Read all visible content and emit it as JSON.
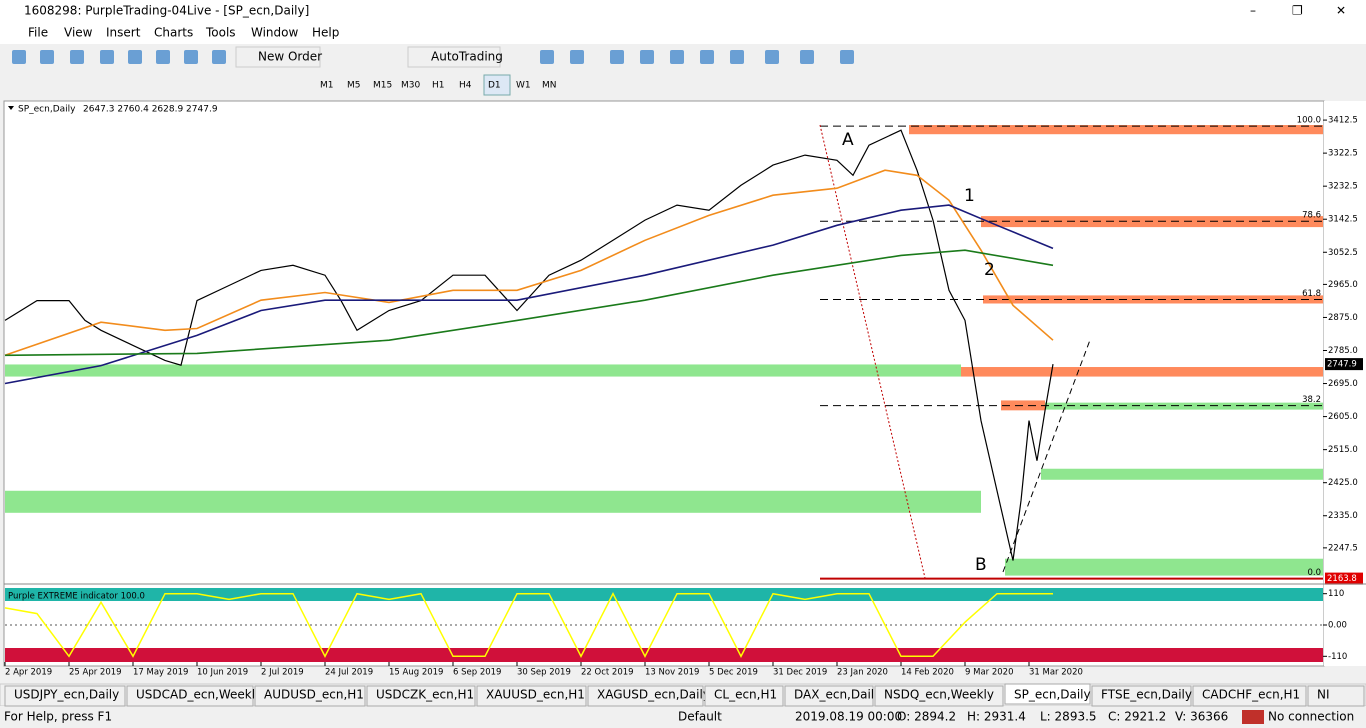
{
  "window": {
    "title": "1608298: PurpleTrading-04Live - [SP_ecn,Daily]"
  },
  "menu": [
    "File",
    "View",
    "Insert",
    "Charts",
    "Tools",
    "Window",
    "Help"
  ],
  "toolbar": {
    "new_order": "New Order",
    "auto_trading": "AutoTrading",
    "periods": [
      "M1",
      "M5",
      "M15",
      "M30",
      "H1",
      "H4",
      "D1",
      "W1",
      "MN"
    ]
  },
  "chart_data": [
    {
      "type": "line",
      "title": "SP_ecn,Daily",
      "subtitle": "2647.3 2760.4 2628.9 2747.9",
      "xlim": [
        0,
        329.5
      ],
      "ylim": [
        2160,
        3459
      ],
      "xticks": [
        {
          "value": 0,
          "label": "2 Apr 2019"
        },
        {
          "value": 16,
          "label": "25 Apr 2019"
        },
        {
          "value": 32,
          "label": "17 May 2019"
        },
        {
          "value": 48,
          "label": "10 Jun 2019"
        },
        {
          "value": 64,
          "label": "2 Jul 2019"
        },
        {
          "value": 80,
          "label": "24 Jul 2019"
        },
        {
          "value": 96,
          "label": "15 Aug 2019"
        },
        {
          "value": 112,
          "label": "6 Sep 2019"
        },
        {
          "value": 128,
          "label": "30 Sep 2019"
        },
        {
          "value": 144,
          "label": "22 Oct 2019"
        },
        {
          "value": 160,
          "label": "13 Nov 2019"
        },
        {
          "value": 176,
          "label": "5 Dec 2019"
        },
        {
          "value": 192,
          "label": "31 Dec 2019"
        },
        {
          "value": 208,
          "label": "23 Jan 2020"
        },
        {
          "value": 224,
          "label": "14 Feb 2020"
        },
        {
          "value": 240,
          "label": "9 Mar 2020"
        },
        {
          "value": 256,
          "label": "31 Mar 2020"
        }
      ],
      "yticks": [
        3412.5,
        3322.5,
        3232.5,
        3142.5,
        3052.5,
        {
          "value": 2965,
          "label": "2965.0"
        },
        {
          "value": 2875,
          "label": "2875.0"
        },
        {
          "value": 2785,
          "label": "2785.0"
        },
        {
          "value": 2695,
          "label": "2695.0"
        },
        {
          "value": 2605,
          "label": "2605.0"
        },
        {
          "value": 2515,
          "label": "2515.0"
        },
        {
          "value": 2425,
          "label": "2425.0"
        },
        {
          "value": 2335,
          "label": "2335.0"
        },
        2247.5
      ],
      "series": [
        {
          "color": "#000000",
          "x": [
            0,
            8,
            16,
            20,
            24,
            32,
            40,
            44,
            48,
            56,
            64,
            72,
            80,
            84,
            88,
            96,
            104,
            112,
            120,
            128,
            136,
            144,
            152,
            160,
            168,
            176,
            184,
            192,
            200,
            208,
            212,
            216,
            224,
            228,
            232,
            236,
            240,
            244,
            248,
            252,
            254,
            256,
            258,
            260,
            262
          ],
          "values": [
            2867,
            2921,
            2921,
            2867,
            2840,
            2799,
            2758,
            2745,
            2921,
            2962,
            3003,
            3017,
            2990,
            2921,
            2840,
            2894,
            2921,
            2990,
            2990,
            2894,
            2990,
            3031,
            3085,
            3140,
            3181,
            3167,
            3235,
            3290,
            3317,
            3303,
            3262,
            3344,
            3385,
            3276,
            3140,
            2949,
            2867,
            2594,
            2403,
            2213,
            2376,
            2594,
            2485,
            2621,
            2747.9
          ]
        },
        {
          "color": "#f28c1c",
          "x": [
            0,
            24,
            40,
            48,
            64,
            80,
            96,
            112,
            128,
            144,
            160,
            176,
            192,
            208,
            220,
            228,
            236,
            244,
            252,
            262
          ],
          "values": [
            2772,
            2862,
            2840,
            2845,
            2922,
            2943,
            2916,
            2949,
            2949,
            3003,
            3085,
            3153,
            3208,
            3227,
            3276,
            3262,
            3194,
            3058,
            2908,
            2813
          ]
        },
        {
          "color": "#1a1a7a",
          "x": [
            0,
            24,
            48,
            64,
            80,
            96,
            128,
            160,
            192,
            208,
            224,
            236,
            248,
            262
          ],
          "values": [
            2695,
            2744,
            2826,
            2894,
            2922,
            2922,
            2922,
            2990,
            3072,
            3126,
            3167,
            3181,
            3126,
            3063
          ]
        },
        {
          "color": "#1a7a1a",
          "x": [
            0,
            48,
            96,
            128,
            160,
            192,
            224,
            240,
            262
          ],
          "values": [
            2772,
            2777,
            2813,
            2867,
            2922,
            2990,
            3044,
            3058,
            3017
          ]
        }
      ],
      "zones": [
        {
          "x": [
            226,
            329.5
          ],
          "y": [
            3374,
            3399
          ],
          "color": "#ff8a5c"
        },
        {
          "x": [
            244,
            329.5
          ],
          "y": [
            3121,
            3151
          ],
          "color": "#ff8a5c"
        },
        {
          "x": [
            244.5,
            329.5
          ],
          "y": [
            2913,
            2935
          ],
          "color": "#ff8a5c"
        },
        {
          "x": [
            239,
            329.5
          ],
          "y": [
            2714,
            2740
          ],
          "color": "#ff8a5c"
        },
        {
          "x": [
            249,
            260
          ],
          "y": [
            2622,
            2649
          ],
          "color": "#ff8a5c"
        },
        {
          "x": [
            0,
            239
          ],
          "y": [
            2714,
            2747
          ],
          "color": "#8fe68f"
        },
        {
          "x": [
            260,
            329.5
          ],
          "y": [
            2624,
            2643
          ],
          "color": "#8fe68f"
        },
        {
          "x": [
            259,
            329.5
          ],
          "y": [
            2433,
            2463
          ],
          "color": "#8fe68f"
        },
        {
          "x": [
            0,
            244
          ],
          "y": [
            2343,
            2403
          ],
          "color": "#8fe68f"
        },
        {
          "x": [
            250,
            329.5
          ],
          "y": [
            2172,
            2218
          ],
          "color": "#8fe68f"
        }
      ],
      "fib_levels": [
        {
          "value": 3396,
          "label": "100.0"
        },
        {
          "value": 3137,
          "label": "78.6"
        },
        {
          "value": 2924,
          "label": "61.8"
        },
        {
          "value": 2635,
          "label": "38.2"
        },
        {
          "value": 2163.8,
          "label": "0.0"
        }
      ],
      "fib_start": 203.75,
      "current_price": 2747.9,
      "marked_price": 2163.8,
      "annotations": [
        "A",
        "1",
        "2",
        "B"
      ]
    },
    {
      "type": "line",
      "title": "Purple EXTREME indicator 100.0",
      "ylim": [
        -130,
        130
      ],
      "yticks": [
        110,
        {
          "value": 0,
          "label": "0.00"
        },
        -110
      ],
      "color": "#ffff00",
      "x": [
        0,
        8,
        16,
        24,
        32,
        40,
        48,
        56,
        64,
        72,
        80,
        88,
        96,
        104,
        112,
        120,
        128,
        136,
        144,
        152,
        160,
        168,
        176,
        184,
        192,
        200,
        208,
        216,
        224,
        232,
        240,
        248,
        256,
        262
      ],
      "values": [
        60,
        40,
        -110,
        80,
        -110,
        110,
        110,
        90,
        110,
        110,
        -110,
        110,
        90,
        110,
        -110,
        -110,
        110,
        110,
        -110,
        110,
        -110,
        110,
        110,
        -110,
        110,
        90,
        110,
        110,
        -110,
        -110,
        10,
        110,
        110,
        110
      ]
    }
  ],
  "tabs": [
    "USDJPY_ecn,Daily",
    "USDCAD_ecn,Weekly",
    "AUDUSD_ecn,H1",
    "USDCZK_ecn,H1",
    "XAUUSD_ecn,H1",
    "XAGUSD_ecn,Daily",
    "CL_ecn,H1",
    "DAX_ecn,Daily",
    "NSDQ_ecn,Weekly",
    "SP_ecn,Daily",
    "FTSE_ecn,Daily",
    "CADCHF_ecn,H1",
    "NI"
  ],
  "status": {
    "help": "For Help, press F1",
    "profile": "Default",
    "time": "2019.08.19 00:00",
    "open": "O: 2894.2",
    "high": "H: 2931.4",
    "low": "L: 2893.5",
    "close": "C: 2921.2",
    "volume": "V: 36366",
    "connection": "No connection"
  }
}
